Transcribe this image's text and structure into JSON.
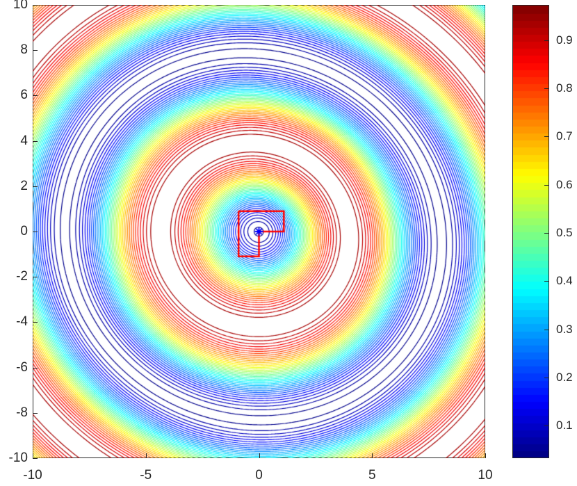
{
  "chart_data": {
    "type": "contour",
    "title": "",
    "xlabel": "",
    "ylabel": "",
    "xlim": [
      -10,
      10
    ],
    "ylim": [
      -10,
      10
    ],
    "x_ticks": [
      -10,
      -5,
      0,
      5,
      10
    ],
    "y_ticks": [
      -10,
      -8,
      -6,
      -4,
      -2,
      0,
      2,
      4,
      6,
      8,
      10
    ],
    "x_tick_labels": [
      "-10",
      "-5",
      "0",
      "5",
      "10"
    ],
    "y_tick_labels": [
      "-10",
      "-8",
      "-6",
      "-4",
      "-2",
      "0",
      "2",
      "4",
      "6",
      "8",
      "10"
    ],
    "colormap": "jet",
    "colorbar": {
      "range": [
        0.034,
        0.972
      ],
      "ticks": [
        0.1,
        0.2,
        0.3,
        0.4,
        0.5,
        0.6,
        0.7,
        0.8,
        0.9
      ],
      "tick_labels": [
        "0.1",
        "0.2",
        "0.3",
        "0.4",
        "0.5",
        "0.6",
        "0.7",
        "0.8",
        "0.9"
      ],
      "position": "right"
    },
    "contour_levels": 40,
    "field_description": "Concentric ring-like field: low values (~0.05) near the origin, rising to a high ring (~0.95) at radius ~4, falling to a low band (~0.05) at radius ~8 with spiral-like distortion, rising again near corners.",
    "overlays": [
      {
        "type": "polygon",
        "name": "red-region-outline",
        "color": "#ff0000",
        "points": [
          [
            -0.9,
            0.9
          ],
          [
            1.1,
            0.9
          ],
          [
            1.1,
            0.0
          ],
          [
            0.0,
            0.0
          ],
          [
            0.0,
            -1.1
          ],
          [
            -0.9,
            -1.1
          ],
          [
            -0.9,
            0.9
          ]
        ]
      },
      {
        "type": "marker",
        "name": "center-marker",
        "marker": "asterisk",
        "color": "#0000ff",
        "x": 0,
        "y": 0
      }
    ],
    "grid": false
  }
}
